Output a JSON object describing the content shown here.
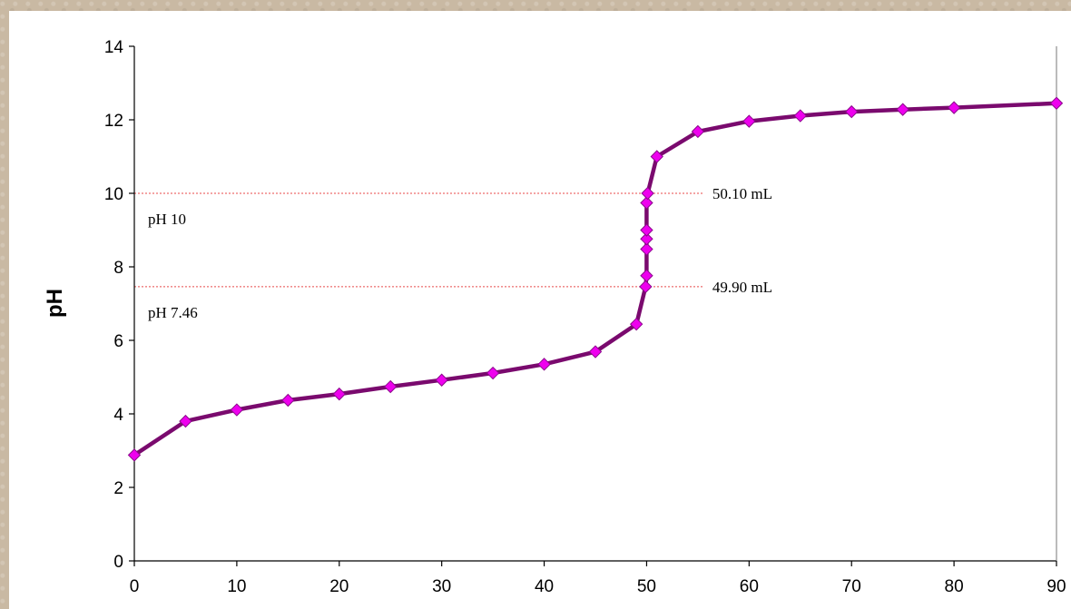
{
  "chart_data": {
    "type": "line",
    "title": "",
    "xlabel": "",
    "ylabel": "pH",
    "xlim": [
      0,
      90
    ],
    "ylim": [
      0,
      14
    ],
    "xticks": [
      0,
      10,
      20,
      30,
      40,
      50,
      60,
      70,
      80,
      90
    ],
    "yticks": [
      0,
      2,
      4,
      6,
      8,
      10,
      12,
      14
    ],
    "grid": false,
    "legend": "none",
    "series": [
      {
        "color": "#7a0a6e",
        "marker_color": "#ee00ee",
        "points": [
          [
            0,
            2.88
          ],
          [
            5,
            3.8
          ],
          [
            10,
            4.11
          ],
          [
            15,
            4.37
          ],
          [
            20,
            4.54
          ],
          [
            25,
            4.74
          ],
          [
            30,
            4.92
          ],
          [
            35,
            5.11
          ],
          [
            40,
            5.35
          ],
          [
            45,
            5.69
          ],
          [
            49,
            6.44
          ],
          [
            49.9,
            7.46
          ],
          [
            50,
            7.76
          ],
          [
            50,
            8.48
          ],
          [
            50,
            8.76
          ],
          [
            50,
            9.0
          ],
          [
            50,
            9.74
          ],
          [
            50.1,
            10.0
          ],
          [
            51,
            11.0
          ],
          [
            55,
            11.68
          ],
          [
            60,
            11.96
          ],
          [
            65,
            12.11
          ],
          [
            70,
            12.22
          ],
          [
            75,
            12.28
          ],
          [
            80,
            12.33
          ],
          [
            90,
            12.45
          ]
        ]
      }
    ],
    "reference_lines": [
      {
        "y": 10,
        "left_label": "pH 10",
        "right_label": "50.10 mL",
        "color": "#e84a4a"
      },
      {
        "y": 7.46,
        "left_label": "pH 7.46",
        "right_label": "49.90 mL",
        "color": "#e84a4a"
      }
    ]
  }
}
